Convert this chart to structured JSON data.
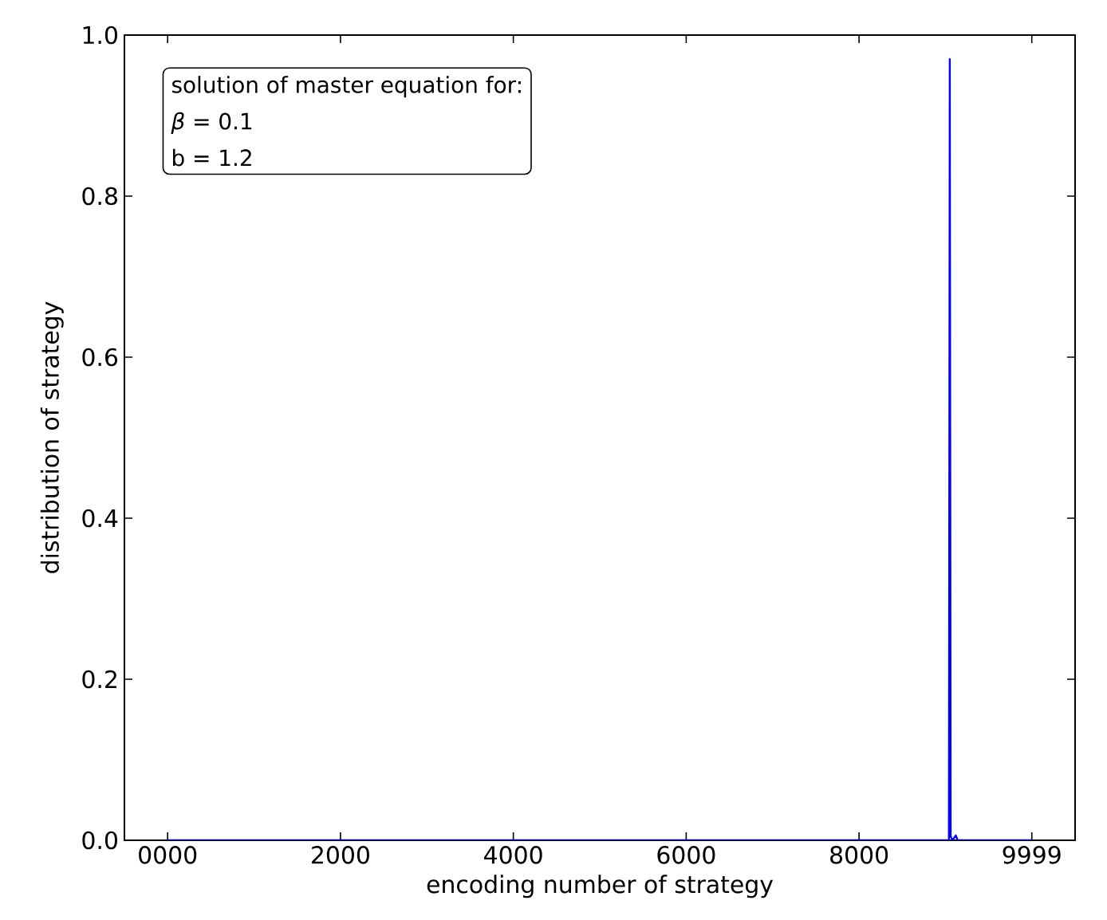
{
  "chart_data": {
    "type": "line",
    "xlabel": "encoding number of strategy",
    "ylabel": "distribution of strategy",
    "annotations": [
      "solution of master equation for:",
      "*β* = 0.1",
      "b = 1.2"
    ],
    "x": [
      0,
      9040,
      9050,
      9060,
      9080,
      9120,
      9140,
      9999
    ],
    "series": [
      {
        "color": "#0000ff",
        "values": [
          0,
          0,
          0.97,
          0.005,
          0,
          0.006,
          0,
          0
        ]
      }
    ],
    "xlim": [
      -500,
      10500
    ],
    "ylim": [
      0,
      1
    ],
    "xticks": [
      {
        "value": 0,
        "label": "0000"
      },
      2000,
      4000,
      6000,
      8000,
      9999
    ],
    "yticks": [
      {
        "value": 0,
        "label": "0.0"
      },
      {
        "value": 0.2,
        "label": "0.2"
      },
      {
        "value": 0.4,
        "label": "0.4"
      },
      {
        "value": 0.6,
        "label": "0.6"
      },
      {
        "value": 0.8,
        "label": "0.8"
      },
      {
        "value": 1,
        "label": "1.0"
      }
    ],
    "grid": false,
    "marker": "none",
    "line_style": "solid"
  }
}
